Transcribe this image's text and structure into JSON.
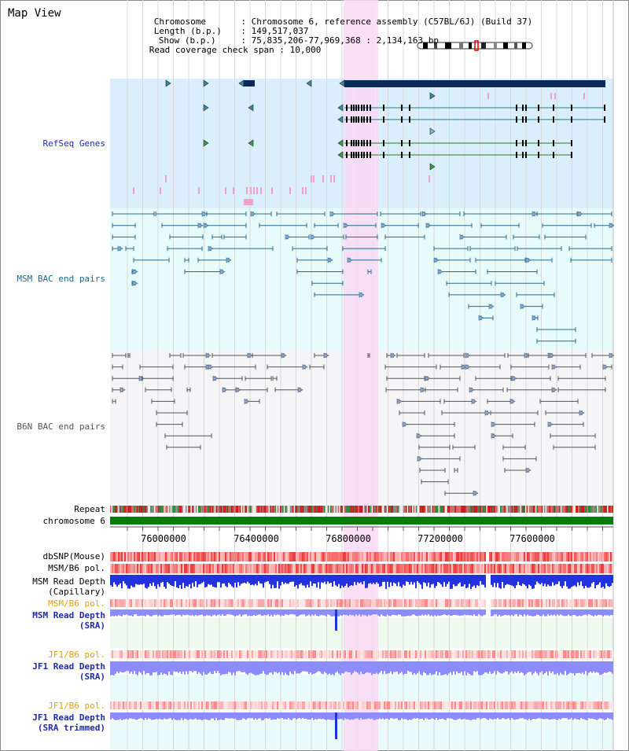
{
  "header": {
    "title": "Map View",
    "info": [
      {
        "key": "Chromosome",
        "value": "Chromosome 6, reference assembly (C57BL/6J) (Build 37)"
      },
      {
        "key": "Length (b.p.)",
        "value": "149,517,037"
      },
      {
        "key": "Show (b.p.)",
        "value": "75,835,206-77,969,368 : 2,134,163 bp"
      },
      {
        "key": "Read coverage check span",
        "value": "10,000"
      }
    ]
  },
  "tracks": {
    "refseq": "RefSeq Genes",
    "msm_bac": "MSM BAC end pairs",
    "b6n_bac": "B6N BAC end pairs",
    "repeat": "Repeat",
    "chromosome": "chromosome 6",
    "dbsnp": "dbSNP(Mouse)",
    "msm_b6_pol_1": "MSM/B6 pol.",
    "msm_read_depth_cap": [
      "MSM Read Depth",
      "(Capillary)"
    ],
    "msm_b6_pol_2": "MSM/B6 pol.",
    "msm_read_depth_sra": [
      "MSM Read Depth",
      "(SRA)"
    ],
    "jf1_b6_pol_1": "JF1/B6 pol.",
    "jf1_read_depth_sra": [
      "JF1 Read Depth",
      "(SRA)"
    ],
    "jf1_b6_pol_2": "JF1/B6 pol.",
    "jf1_read_depth_trim": [
      "JF1 Read Depth",
      "(SRA trimmed)"
    ]
  },
  "axis": {
    "ticks": [
      "76000000",
      "76400000",
      "76800000",
      "77200000",
      "77600000"
    ]
  },
  "colors": {
    "refseq_bg": "#dbeefb",
    "msm_bg": "#e8fbfb",
    "b6n_bg": "#f5f5f8",
    "highlight": "#f9d9f4",
    "gene_dark": "#0a2a5a",
    "gene_line": "#4a7b8a",
    "gene_green": "#2f7a2f",
    "bac_blue": "#2a6a8a",
    "bac_gray": "#555555",
    "chromosome_green": "#0a7a0a",
    "label_blue": "#1f2aa5",
    "label_orange": "#e5a00a",
    "depth_blue": "#2233dd",
    "depth_light": "#8c8cff"
  }
}
